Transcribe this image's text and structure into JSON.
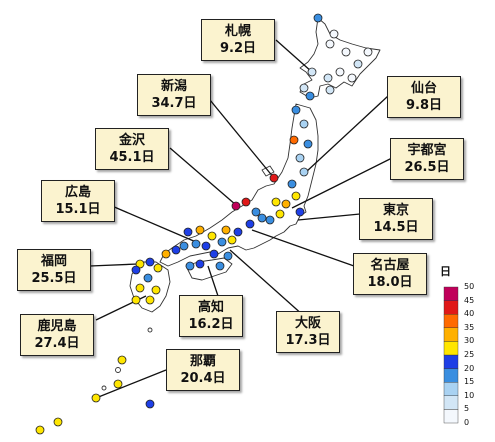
{
  "callouts": [
    {
      "id": "sapporo",
      "city": "札幌",
      "days": "9.2日"
    },
    {
      "id": "niigata",
      "city": "新潟",
      "days": "34.7日"
    },
    {
      "id": "sendai",
      "city": "仙台",
      "days": "9.8日"
    },
    {
      "id": "kanazawa",
      "city": "金沢",
      "days": "45.1日"
    },
    {
      "id": "utsunomiya",
      "city": "宇都宮",
      "days": "26.5日"
    },
    {
      "id": "hiroshima",
      "city": "広島",
      "days": "15.1日"
    },
    {
      "id": "tokyo",
      "city": "東京",
      "days": "14.5日"
    },
    {
      "id": "fukuoka",
      "city": "福岡",
      "days": "25.5日"
    },
    {
      "id": "nagoya",
      "city": "名古屋",
      "days": "18.0日"
    },
    {
      "id": "kochi",
      "city": "高知",
      "days": "16.2日"
    },
    {
      "id": "osaka",
      "city": "大阪",
      "days": "17.3日"
    },
    {
      "id": "kagoshima",
      "city": "鹿児島",
      "days": "27.4日"
    },
    {
      "id": "naha",
      "city": "那覇",
      "days": "20.4日"
    }
  ],
  "legend": {
    "title": "日",
    "ticks": [
      "50",
      "45",
      "40",
      "35",
      "30",
      "25",
      "20",
      "15",
      "10",
      "5",
      "0"
    ],
    "colors": [
      "#f4f8fd",
      "#d2e6f6",
      "#a9d2f2",
      "#3a8ee0",
      "#1e3fe6",
      "#ffe600",
      "#ffb000",
      "#ff6a00",
      "#e01818",
      "#c0005a"
    ]
  },
  "marker_colors": {
    "0-5": "#f4f8fd",
    "5-10": "#d2e6f6",
    "10-15": "#a9d2f2",
    "15-20": "#3a8ee0",
    "20-25": "#1e3fe6",
    "25-30": "#ffe600",
    "30-35": "#ffb000",
    "35-40": "#ff6a00",
    "40-45": "#e01818",
    "45-50": "#c0005a"
  }
}
